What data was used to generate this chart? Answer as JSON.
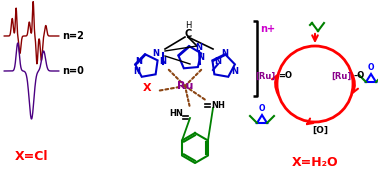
{
  "bg_color": "#ffffff",
  "ecg1_color": "#8B0000",
  "ecg2_color": "#4B0082",
  "n2_label": "n=2",
  "n0_label": "n=0",
  "xcl_label": "X=Cl",
  "xcl_color": "#ff0000",
  "xh2o_label": "X=H₂O",
  "xh2o_color": "#ff0000",
  "ru_color": "#8B008B",
  "black_color": "#000000",
  "bracket_color": "#000000",
  "np_color": "#cc00cc",
  "bond_brown": "#8B4513",
  "blue_color": "#0000cd",
  "green_color": "#008000",
  "red_color": "#ff0000",
  "gray_color": "#666666",
  "blue_epox_color": "#0000ff",
  "cycle_circle_color": "#ff0000"
}
